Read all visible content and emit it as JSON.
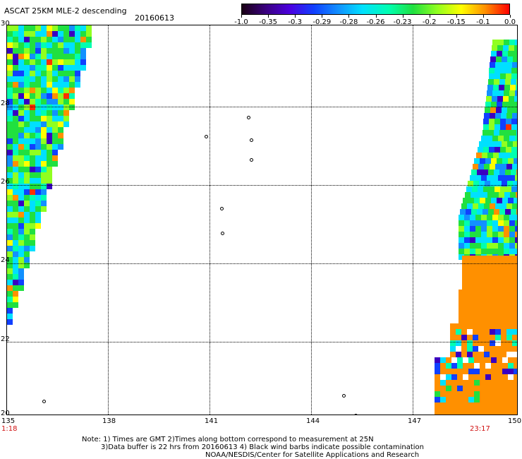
{
  "title": "ASCAT 25KM MLE-2 descending",
  "date": "20160613",
  "colorbar": {
    "labels": [
      "-1.0",
      "-0.35",
      "-0.3",
      "-0.29",
      "-0.28",
      "-0.26",
      "-0.23",
      "-0.2",
      "-0.15",
      "-0.1",
      "0.0"
    ],
    "colors": [
      "#1a0014",
      "#3a0080",
      "#4b00e0",
      "#1040ff",
      "#1290ff",
      "#00e0ff",
      "#00ffb0",
      "#20e040",
      "#90ff20",
      "#ffff00",
      "#ff9000",
      "#ff0000"
    ]
  },
  "map": {
    "lat_labels": [
      "30",
      "28",
      "26",
      "24",
      "22",
      "20"
    ],
    "lon_labels": [
      "135",
      "138",
      "141",
      "144",
      "147",
      "150"
    ],
    "time_start": "1:18",
    "time_end": "23:17"
  },
  "notes": {
    "line1": "Note: 1) Times are GMT 2)Times along bottom correspond to measurement at 25N",
    "line2": "3)Data buffer is 22 hrs from 20160613 4) Black wind barbs indicate possible contamination",
    "line3": "NOAA/NESDIS/Center for Satellite Applications and Research"
  }
}
